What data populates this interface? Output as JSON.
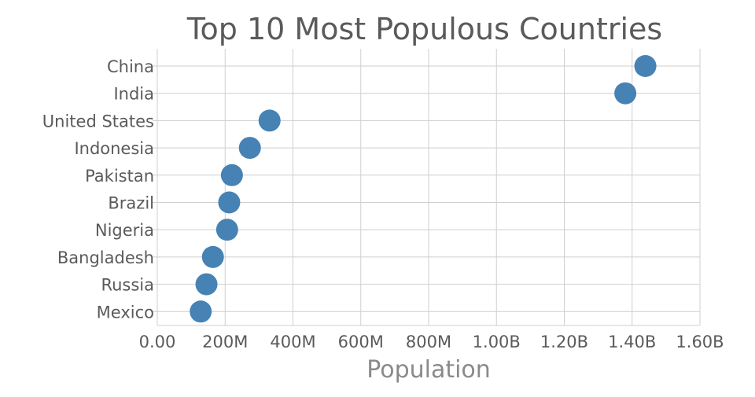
{
  "chart_data": {
    "type": "scatter",
    "title": "Top 10 Most Populous Countries",
    "xlabel": "Population",
    "ylabel": "",
    "xlim": [
      0,
      1600000000
    ],
    "x_ticks": [
      0,
      200000000,
      400000000,
      600000000,
      800000000,
      1000000000,
      1200000000,
      1400000000,
      1600000000
    ],
    "x_tick_labels": [
      "0.00",
      "200M",
      "400M",
      "600M",
      "800M",
      "1.00B",
      "1.20B",
      "1.40B",
      "1.60B"
    ],
    "categories": [
      "China",
      "India",
      "United States",
      "Indonesia",
      "Pakistan",
      "Brazil",
      "Nigeria",
      "Bangladesh",
      "Russia",
      "Mexico"
    ],
    "values": [
      1439000000,
      1380000000,
      331000000,
      273000000,
      220000000,
      212000000,
      206000000,
      164000000,
      145000000,
      128000000
    ],
    "grid": true,
    "legend": "none",
    "marker_color": "#4682b4"
  }
}
